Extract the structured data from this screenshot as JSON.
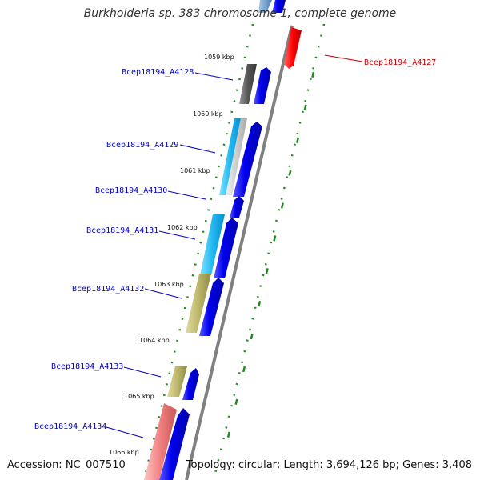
{
  "title": "Burkholderia sp. 383 chromosome 1, complete genome",
  "footer": {
    "accession": "Accession: NC_007510",
    "summary": "Topology: circular; Length: 3,694,126 bp; Genes: 3,408"
  },
  "colors": {
    "plus_strand": "#0000ee",
    "minus_strand": "#ff0000",
    "backbone": "#808080",
    "ticks": "#228b22",
    "label_blue": "#0000cc",
    "label_red": "#cc0000"
  },
  "scale_labels": [
    "1059 kbp",
    "1060 kbp",
    "1061 kbp",
    "1062 kbp",
    "1063 kbp",
    "1064 kbp",
    "1065 kbp",
    "1066 kbp"
  ],
  "genes": [
    {
      "name": "Bcep18194_A4127",
      "strand": "minus",
      "color": "#ff0000"
    },
    {
      "name": "Bcep18194_A4128",
      "strand": "plus",
      "color": "#0000cc"
    },
    {
      "name": "Bcep18194_A4129",
      "strand": "plus",
      "color": "#0000cc"
    },
    {
      "name": "Bcep18194_A4130",
      "strand": "plus",
      "color": "#0000cc"
    },
    {
      "name": "Bcep18194_A4131",
      "strand": "plus",
      "color": "#0000cc"
    },
    {
      "name": "Bcep18194_A4132",
      "strand": "plus",
      "color": "#0000cc"
    },
    {
      "name": "Bcep18194_A4133",
      "strand": "plus",
      "color": "#0000cc"
    },
    {
      "name": "Bcep18194_A4134",
      "strand": "plus",
      "color": "#0000cc"
    }
  ]
}
